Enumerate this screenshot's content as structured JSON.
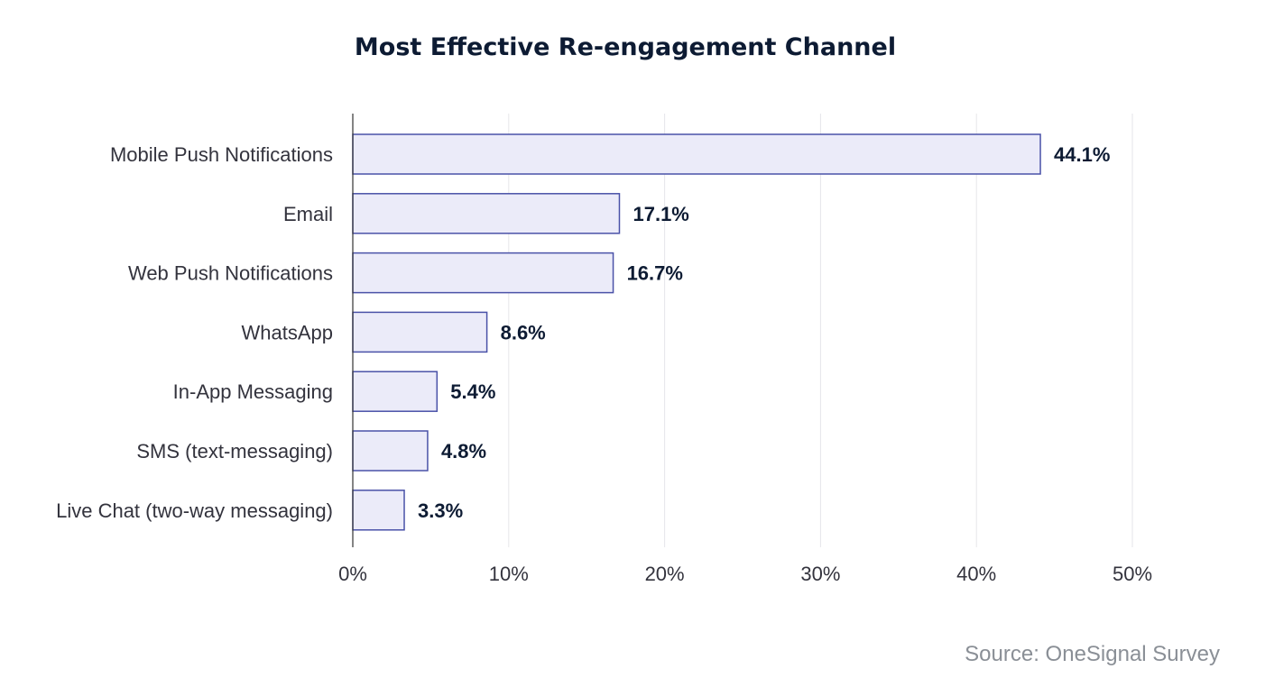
{
  "chart_data": {
    "type": "bar",
    "orientation": "horizontal",
    "title": "Most Effective Re-engagement Channel",
    "xlabel": "",
    "ylabel": "",
    "categories": [
      "Mobile Push Notifications",
      "Email",
      "Web Push Notifications",
      "WhatsApp",
      "In-App Messaging",
      "SMS (text-messaging)",
      "Live Chat (two-way messaging)"
    ],
    "values": [
      44.1,
      17.1,
      16.7,
      8.6,
      5.4,
      4.8,
      3.3
    ],
    "value_labels": [
      "44.1%",
      "17.1%",
      "16.7%",
      "8.6%",
      "5.4%",
      "4.8%",
      "3.3%"
    ],
    "xlim": [
      0,
      50
    ],
    "xticks": [
      0,
      10,
      20,
      30,
      40,
      50
    ],
    "xtick_labels": [
      "0%",
      "10%",
      "20%",
      "30%",
      "40%",
      "50%"
    ],
    "grid": "vertical",
    "legend": "none"
  },
  "source": "Source: OneSignal Survey",
  "colors": {
    "bar_fill": "#ebebf9",
    "bar_stroke": "#4a52a8",
    "title": "#0d1b33",
    "category_text": "#33333d",
    "value_text": "#0d1b33",
    "tick_text": "#33333d",
    "grid": "#e6e6ea",
    "axis": "#333333",
    "source_text": "#8a8f96"
  }
}
